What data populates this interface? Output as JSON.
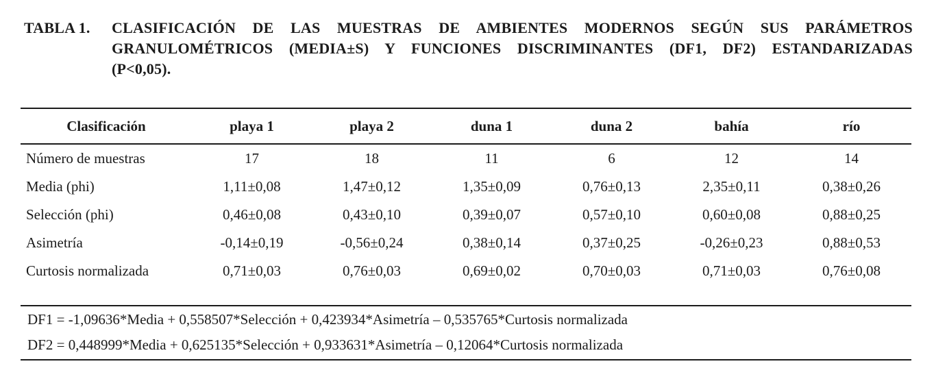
{
  "caption": {
    "label": "TABLA 1.",
    "lines": [
      "CLASIFICACIÓN DE LAS MUESTRAS DE AMBIENTES MODERNOS SEGÚN SUS PARÁMETROS",
      "GRANULOMÉTRICOS (MEDIA±S) Y FUNCIONES DISCRIMINANTES (DF1, DF2) ESTANDARIZADAS",
      "(P<0,05)."
    ]
  },
  "table": {
    "columns": [
      "Clasificación",
      "playa 1",
      "playa 2",
      "duna 1",
      "duna 2",
      "bahía",
      "río"
    ],
    "rows": [
      {
        "label": "Número de muestras",
        "values": [
          "17",
          "18",
          "11",
          "6",
          "12",
          "14"
        ]
      },
      {
        "label": "Media (phi)",
        "values": [
          "1,11±0,08",
          "1,47±0,12",
          "1,35±0,09",
          "0,76±0,13",
          "2,35±0,11",
          "0,38±0,26"
        ]
      },
      {
        "label": "Selección (phi)",
        "values": [
          "0,46±0,08",
          "0,43±0,10",
          "0,39±0,07",
          "0,57±0,10",
          "0,60±0,08",
          "0,88±0,25"
        ]
      },
      {
        "label": "Asimetría",
        "values": [
          "-0,14±0,19",
          "-0,56±0,24",
          "0,38±0,14",
          "0,37±0,25",
          "-0,26±0,23",
          "0,88±0,53"
        ]
      },
      {
        "label": "Curtosis normalizada",
        "values": [
          "0,71±0,03",
          "0,76±0,03",
          "0,69±0,02",
          "0,70±0,03",
          "0,71±0,03",
          "0,76±0,08"
        ]
      }
    ]
  },
  "footnotes": [
    "DF1 = -1,09636*Media + 0,558507*Selección + 0,423934*Asimetría – 0,535765*Curtosis normalizada",
    "DF2 = 0,448999*Media + 0,625135*Selección + 0,933631*Asimetría – 0,12064*Curtosis normalizada"
  ],
  "colors": {
    "text": "#1b1b1b",
    "rule": "#1b1b1b",
    "background": "#ffffff"
  }
}
